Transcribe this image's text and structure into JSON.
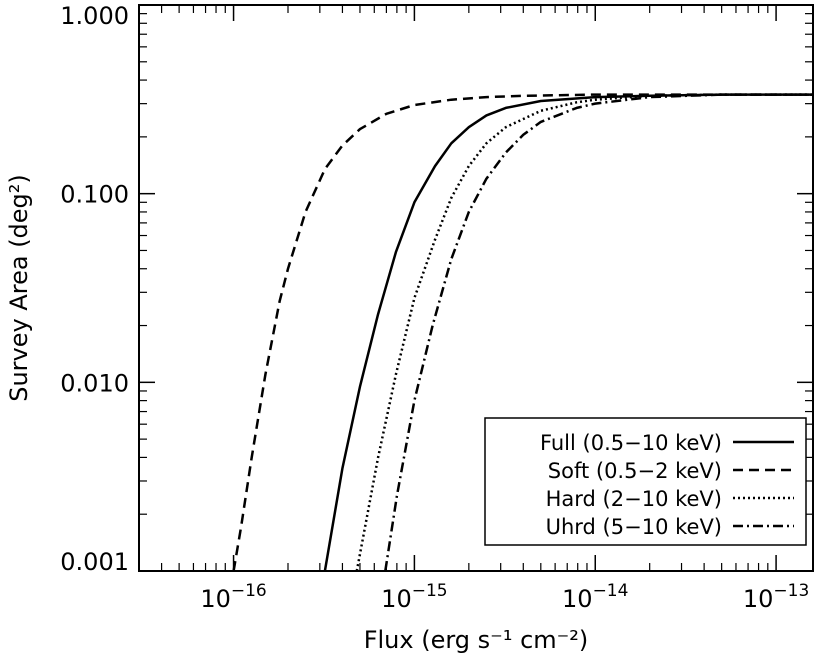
{
  "chart_data": {
    "type": "line",
    "xlabel": "Flux (erg s⁻¹ cm⁻²)",
    "ylabel": "Survey Area (deg²)",
    "x_scale": "log",
    "y_scale": "log",
    "xlim": [
      3e-17,
      1.6e-13
    ],
    "ylim": [
      0.001,
      1.0
    ],
    "x_ticks": [
      {
        "value": 1e-16,
        "base": "10",
        "exp": "−16"
      },
      {
        "value": 1e-15,
        "base": "10",
        "exp": "−15"
      },
      {
        "value": 1e-14,
        "base": "10",
        "exp": "−14"
      },
      {
        "value": 1e-13,
        "base": "10",
        "exp": "−13"
      }
    ],
    "y_ticks": [
      {
        "value": 0.001,
        "label": "0.001"
      },
      {
        "value": 0.01,
        "label": "0.010"
      },
      {
        "value": 0.1,
        "label": "0.100"
      },
      {
        "value": 1.0,
        "label": "1.000"
      }
    ],
    "legend_position": "bottom-right",
    "series": [
      {
        "name": "Full (0.5−10 keV)",
        "line_style": "solid",
        "x": [
          3.2e-16,
          4e-16,
          5e-16,
          6.3e-16,
          7.9e-16,
          1e-15,
          1.3e-15,
          1.6e-15,
          2e-15,
          2.5e-15,
          3.2e-15,
          5e-15,
          1e-14,
          2e-14,
          5e-14,
          1.6e-13
        ],
        "y": [
          0.001,
          0.0035,
          0.0095,
          0.023,
          0.049,
          0.09,
          0.14,
          0.185,
          0.225,
          0.26,
          0.285,
          0.31,
          0.325,
          0.33,
          0.335,
          0.335
        ]
      },
      {
        "name": "Soft (0.5−2 keV)",
        "line_style": "dashed",
        "x": [
          1e-16,
          1.1e-16,
          1.26e-16,
          1.5e-16,
          1.8e-16,
          2e-16,
          2.5e-16,
          3.2e-16,
          4e-16,
          5e-16,
          7e-16,
          1e-15,
          1.6e-15,
          2.5e-15,
          4e-15,
          1e-14,
          1.6e-13
        ],
        "y": [
          0.001,
          0.0017,
          0.004,
          0.011,
          0.027,
          0.04,
          0.08,
          0.135,
          0.18,
          0.22,
          0.265,
          0.295,
          0.315,
          0.325,
          0.33,
          0.335,
          0.335
        ]
      },
      {
        "name": "Hard (2−10 keV)",
        "line_style": "dotted",
        "x": [
          4.8e-16,
          6.3e-16,
          7.9e-16,
          1e-15,
          1.3e-15,
          1.6e-15,
          2e-15,
          2.5e-15,
          3.2e-15,
          5e-15,
          7.9e-15,
          1e-14,
          2e-14,
          5e-14,
          1.6e-13
        ],
        "y": [
          0.001,
          0.004,
          0.011,
          0.028,
          0.057,
          0.095,
          0.14,
          0.185,
          0.225,
          0.275,
          0.305,
          0.315,
          0.33,
          0.335,
          0.335
        ]
      },
      {
        "name": "Uhrd (5−10 keV)",
        "line_style": "dashdot",
        "x": [
          6.9e-16,
          8e-16,
          1e-15,
          1.26e-15,
          1.6e-15,
          2e-15,
          2.5e-15,
          3.2e-15,
          4e-15,
          5e-15,
          7.9e-15,
          1e-14,
          2e-14,
          5e-14,
          1.6e-13
        ],
        "y": [
          0.001,
          0.0025,
          0.008,
          0.02,
          0.045,
          0.08,
          0.12,
          0.165,
          0.205,
          0.24,
          0.285,
          0.3,
          0.325,
          0.335,
          0.335
        ]
      }
    ]
  }
}
